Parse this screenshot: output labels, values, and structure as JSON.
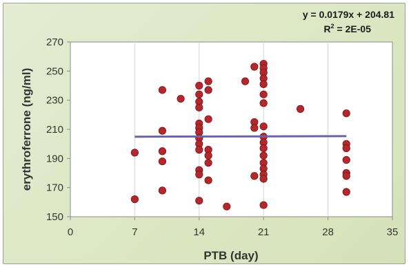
{
  "chart_data": {
    "type": "scatter",
    "xlabel": "PTB (day)",
    "ylabel": "erythroferrone (ng/ml)",
    "xlim": [
      0,
      35
    ],
    "ylim": [
      150,
      270
    ],
    "xticks": [
      "0",
      "7",
      "14",
      "21",
      "28",
      "35"
    ],
    "yticks": [
      "150",
      "170",
      "190",
      "210",
      "230",
      "250",
      "270"
    ],
    "grid": "vertical",
    "marker_color": "#b3282d",
    "trendline_color": "#6b63a8",
    "trendline": {
      "equation": "y = 0.0179x + 204.81",
      "r_squared_label": "R",
      "r_squared_exponent": "2",
      "r_squared_value": " = 2E-05",
      "slope": 0.0179,
      "intercept": 204.81,
      "x_range": [
        7,
        30
      ]
    },
    "points": [
      [
        7,
        194
      ],
      [
        7,
        162
      ],
      [
        10,
        237
      ],
      [
        10,
        209
      ],
      [
        10,
        195
      ],
      [
        10,
        188
      ],
      [
        10,
        168
      ],
      [
        12,
        231
      ],
      [
        14,
        240
      ],
      [
        14,
        234
      ],
      [
        14,
        229
      ],
      [
        14,
        225
      ],
      [
        14,
        214
      ],
      [
        14,
        211
      ],
      [
        14,
        208
      ],
      [
        14,
        204
      ],
      [
        14,
        200
      ],
      [
        14,
        196
      ],
      [
        14,
        182
      ],
      [
        14,
        179
      ],
      [
        14,
        161
      ],
      [
        15,
        243
      ],
      [
        15,
        237
      ],
      [
        15,
        217
      ],
      [
        15,
        196
      ],
      [
        15,
        192
      ],
      [
        15,
        187
      ],
      [
        15,
        175
      ],
      [
        17,
        157
      ],
      [
        19,
        243
      ],
      [
        20,
        253
      ],
      [
        20,
        215
      ],
      [
        20,
        211
      ],
      [
        20,
        178
      ],
      [
        21,
        255
      ],
      [
        21,
        252
      ],
      [
        21,
        249
      ],
      [
        21,
        245
      ],
      [
        21,
        241
      ],
      [
        21,
        234
      ],
      [
        21,
        228
      ],
      [
        21,
        212
      ],
      [
        21,
        205
      ],
      [
        21,
        201
      ],
      [
        21,
        197
      ],
      [
        21,
        192
      ],
      [
        21,
        187
      ],
      [
        21,
        183
      ],
      [
        21,
        179
      ],
      [
        21,
        176
      ],
      [
        21,
        158
      ],
      [
        25,
        224
      ],
      [
        30,
        221
      ],
      [
        30,
        200
      ],
      [
        30,
        197
      ],
      [
        30,
        189
      ],
      [
        30,
        180
      ],
      [
        30,
        178
      ],
      [
        30,
        167
      ]
    ]
  }
}
